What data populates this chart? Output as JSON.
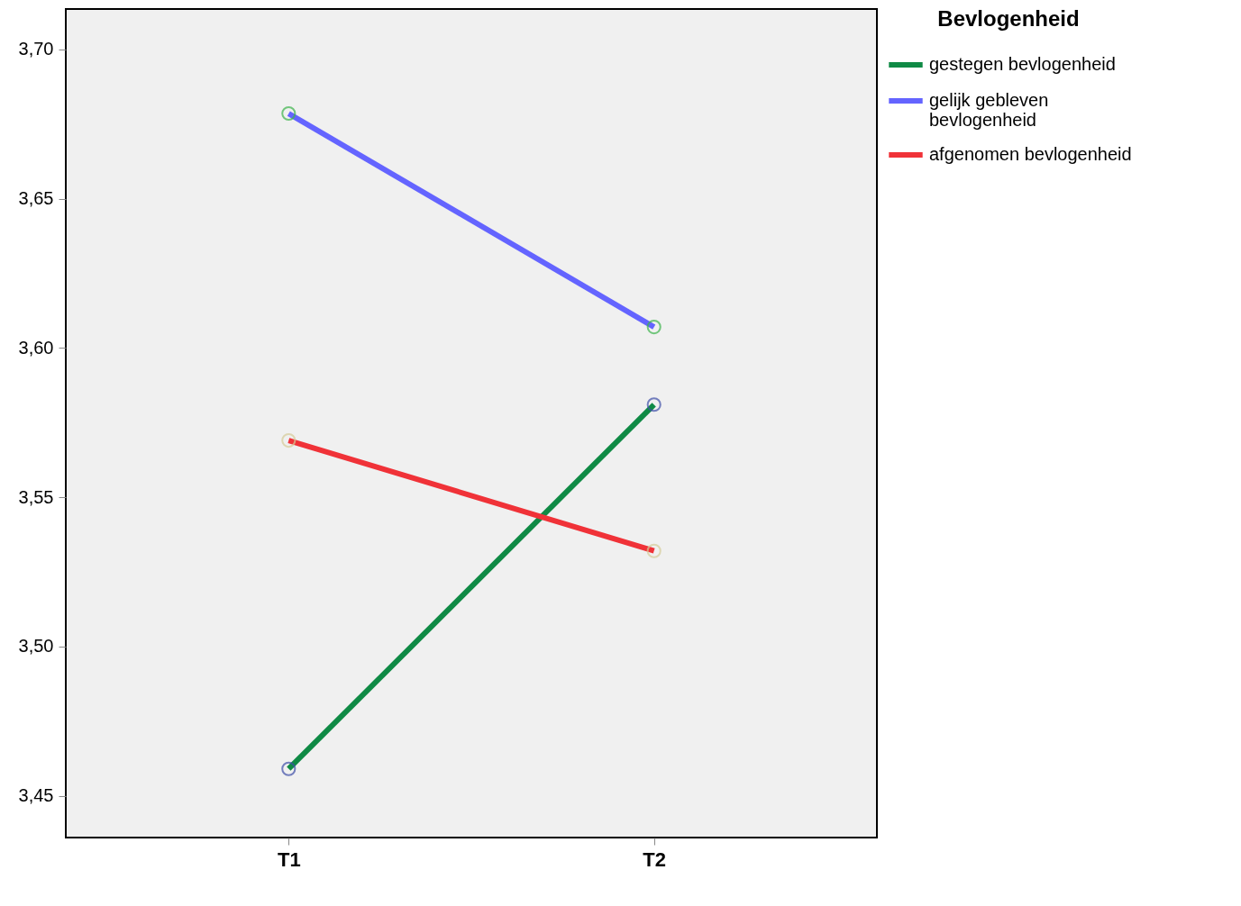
{
  "chart_data": {
    "type": "line",
    "categories": [
      "T1",
      "T2"
    ],
    "series": [
      {
        "name": "gestegen bevlogenheid",
        "color": "#0f8a45",
        "colors": [
          "#3f4fa8",
          "#3f4fa8"
        ],
        "values": [
          3.459,
          3.581
        ]
      },
      {
        "name": "gelijk gebleven bevlogenheid",
        "color": "#6464ff",
        "colors": [
          "#3cb44b",
          "#3cb44b"
        ],
        "values": [
          3.6785,
          3.607
        ]
      },
      {
        "name": "afgenomen bevlogenheid",
        "color": "#f03238",
        "colors": [
          "#d6cc98",
          "#d6cc98"
        ],
        "values": [
          3.569,
          3.532
        ]
      }
    ],
    "legend_title": "Bevlogenheid",
    "legend": "top right",
    "marker": "circle",
    "line_style": "solid",
    "grid": false,
    "ylim": [
      3.436,
      3.7135
    ],
    "yticks": [
      {
        "value": 3.45,
        "label": "3,45"
      },
      {
        "value": 3.5,
        "label": "3,50"
      },
      {
        "value": 3.55,
        "label": "3,55"
      },
      {
        "value": 3.6,
        "label": "3,60"
      },
      {
        "value": 3.65,
        "label": "3,65"
      },
      {
        "value": 3.7,
        "label": "3,70"
      }
    ]
  }
}
